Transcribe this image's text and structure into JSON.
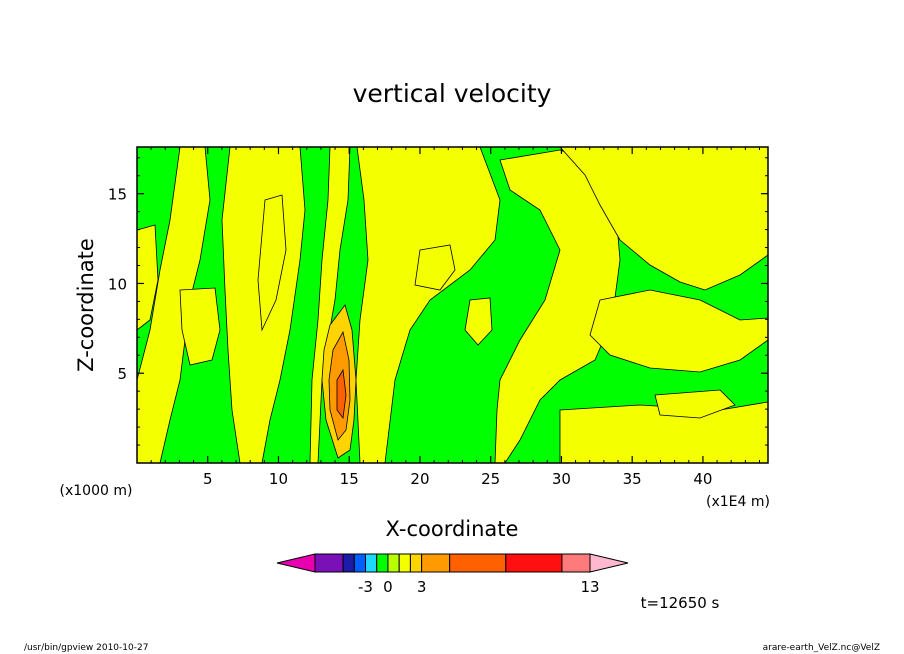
{
  "chart_data": {
    "type": "heatmap",
    "title": "vertical velocity",
    "xlabel": "X-coordinate",
    "ylabel": "Z-coordinate",
    "xunit": "(x1E4 m)",
    "yunit": "(x1000 m)",
    "xlim": [
      0,
      44.6
    ],
    "ylim": [
      0,
      17.6
    ],
    "xticks": [
      "5",
      "10",
      "15",
      "20",
      "25",
      "30",
      "35",
      "40"
    ],
    "xtick_values": [
      5,
      10,
      15,
      20,
      25,
      30,
      35,
      40
    ],
    "yticks": [
      "5",
      "10",
      "15"
    ],
    "ytick_values": [
      5,
      10,
      15
    ],
    "time_label": "t=12650 s",
    "colorbar": {
      "colors": [
        "#e800b0",
        "#7a10b8",
        "#1c1ca8",
        "#0060ff",
        "#20d8ff",
        "#00ff00",
        "#b8ff00",
        "#f4ff00",
        "#ffd400",
        "#ff9a00",
        "#ff6000",
        "#ff1010",
        "#ff7a7a",
        "#ffb8d0"
      ],
      "widths": [
        1,
        1,
        0.4,
        0.4,
        0.4,
        0.4,
        0.4,
        0.4,
        0.4,
        1,
        2,
        2,
        1,
        1
      ],
      "labels": [
        "-3",
        "0",
        "3",
        "13"
      ],
      "label_boundaries": [
        4,
        6,
        9,
        13
      ]
    },
    "fields": {
      "background_color": "#00ff00",
      "positive_color": "#f4ff00",
      "strong_colors": [
        "#ffd400",
        "#ff9a00",
        "#ff6000"
      ]
    }
  },
  "footer": {
    "left": "/usr/bin/gpview   2010-10-27",
    "right": "arare-earth_VelZ.nc@VelZ"
  }
}
